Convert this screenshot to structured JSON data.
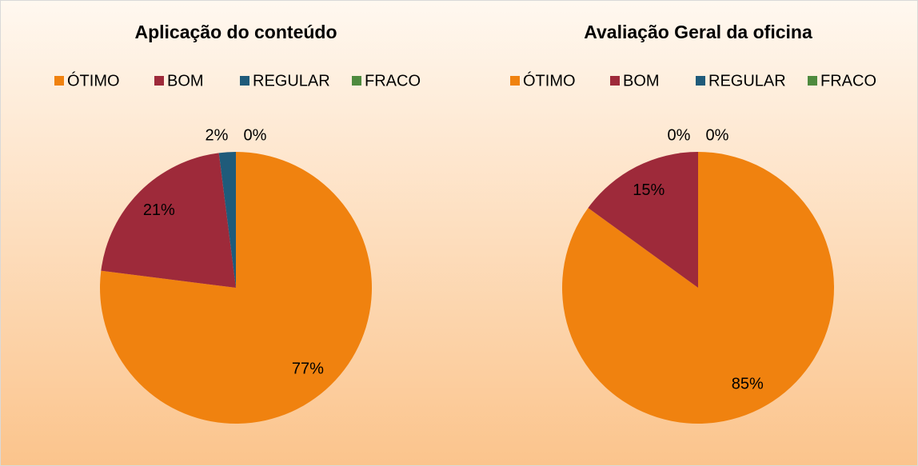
{
  "chart_data": [
    {
      "type": "pie",
      "title": "Aplicação do conteúdo",
      "categories": [
        "ÓTIMO",
        "BOM",
        "REGULAR",
        "FRACO"
      ],
      "values": [
        77,
        21,
        2,
        0
      ],
      "value_labels": [
        "77%",
        "21%",
        "2%",
        "0%"
      ],
      "colors": [
        "#f0820f",
        "#9e2a3a",
        "#1f5b7a",
        "#4e8a3e"
      ],
      "legend": "top"
    },
    {
      "type": "pie",
      "title": "Avaliação Geral da oficina",
      "categories": [
        "ÓTIMO",
        "BOM",
        "REGULAR",
        "FRACO"
      ],
      "values": [
        85,
        15,
        0,
        0
      ],
      "value_labels": [
        "85%",
        "15%",
        "0%",
        "0%"
      ],
      "colors": [
        "#f0820f",
        "#9e2a3a",
        "#1f5b7a",
        "#4e8a3e"
      ],
      "legend": "top"
    }
  ]
}
